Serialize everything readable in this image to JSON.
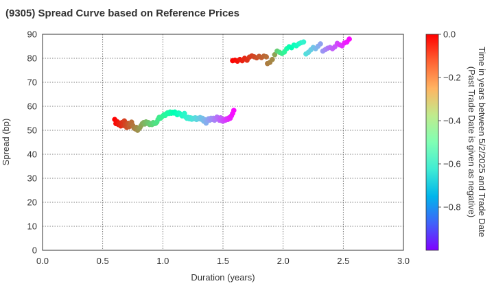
{
  "chart_data": {
    "type": "scatter",
    "title": "(9305)   Spread Curve based on Reference Prices",
    "xlabel": "Duration (years)",
    "ylabel": "Spread (bp)",
    "xlim": [
      0.0,
      3.0
    ],
    "ylim": [
      0,
      90
    ],
    "x_ticks": [
      "0.0",
      "0.5",
      "1.0",
      "1.5",
      "2.0",
      "2.5",
      "3.0"
    ],
    "y_ticks": [
      "0",
      "10",
      "20",
      "30",
      "40",
      "50",
      "60",
      "70",
      "80",
      "90"
    ],
    "grid": true,
    "colorbar": {
      "label_line1": "Time in years between 5/2/2025 and Trade Date",
      "label_line2": "(Past Trade Date is given as negative)",
      "range": [
        -1.0,
        0.0
      ],
      "ticks": [
        "0.0",
        "−0.2",
        "−0.4",
        "−0.6",
        "−0.8"
      ],
      "colormap": "rainbow"
    },
    "series": [
      {
        "points": [
          [
            0.6,
            54.5,
            0.0
          ],
          [
            0.61,
            52.8,
            -0.01
          ],
          [
            0.62,
            53.6,
            -0.02
          ],
          [
            0.63,
            52.4,
            -0.03
          ],
          [
            0.64,
            53.0,
            -0.04
          ],
          [
            0.65,
            51.8,
            -0.05
          ],
          [
            0.66,
            53.2,
            -0.06
          ],
          [
            0.67,
            52.0,
            -0.07
          ],
          [
            0.68,
            53.9,
            -0.08
          ],
          [
            0.69,
            52.2,
            -0.09
          ],
          [
            0.7,
            51.2,
            -0.1
          ],
          [
            0.71,
            52.9,
            -0.11
          ],
          [
            0.72,
            51.5,
            -0.12
          ],
          [
            0.73,
            52.6,
            -0.13
          ],
          [
            0.74,
            53.4,
            -0.14
          ],
          [
            0.75,
            52.0,
            -0.15
          ],
          [
            0.76,
            51.0,
            -0.16
          ],
          [
            0.77,
            50.6,
            -0.17
          ],
          [
            0.78,
            51.2,
            -0.18
          ],
          [
            0.79,
            50.0,
            -0.19
          ],
          [
            0.8,
            50.6,
            -0.2
          ],
          [
            0.81,
            51.2,
            -0.21
          ],
          [
            0.82,
            52.0,
            -0.22
          ],
          [
            0.83,
            52.8,
            -0.23
          ],
          [
            0.84,
            53.2,
            -0.24
          ],
          [
            0.85,
            52.6,
            -0.25
          ],
          [
            0.86,
            53.5,
            -0.26
          ],
          [
            0.87,
            52.9,
            -0.27
          ],
          [
            0.88,
            53.2,
            -0.28
          ],
          [
            0.89,
            52.4,
            -0.29
          ],
          [
            0.9,
            52.8,
            -0.3
          ],
          [
            0.91,
            52.4,
            -0.31
          ],
          [
            0.92,
            53.2,
            -0.32
          ],
          [
            0.93,
            52.8,
            -0.33
          ],
          [
            0.94,
            52.9,
            -0.34
          ],
          [
            0.95,
            53.4,
            -0.35
          ],
          [
            0.96,
            54.5,
            -0.36
          ],
          [
            0.97,
            55.4,
            -0.37
          ],
          [
            0.98,
            55.0,
            -0.38
          ],
          [
            0.99,
            55.5,
            -0.39
          ],
          [
            1.0,
            56.0,
            -0.4
          ],
          [
            1.01,
            56.5,
            -0.41
          ],
          [
            1.02,
            56.2,
            -0.42
          ],
          [
            1.03,
            56.9,
            -0.43
          ],
          [
            1.04,
            57.3,
            -0.44
          ],
          [
            1.05,
            57.0,
            -0.45
          ],
          [
            1.06,
            57.6,
            -0.46
          ],
          [
            1.07,
            57.1,
            -0.47
          ],
          [
            1.08,
            57.5,
            -0.48
          ],
          [
            1.09,
            57.2,
            -0.49
          ],
          [
            1.1,
            57.6,
            -0.5
          ],
          [
            1.11,
            57.0,
            -0.51
          ],
          [
            1.12,
            56.5,
            -0.52
          ],
          [
            1.13,
            57.2,
            -0.53
          ],
          [
            1.14,
            57.0,
            -0.54
          ],
          [
            1.15,
            56.6,
            -0.55
          ],
          [
            1.16,
            56.0,
            -0.56
          ],
          [
            1.17,
            56.4,
            -0.57
          ],
          [
            1.18,
            57.0,
            -0.58
          ],
          [
            1.19,
            55.5,
            -0.59
          ],
          [
            1.2,
            55.0,
            -0.6
          ],
          [
            1.21,
            55.4,
            -0.61
          ],
          [
            1.22,
            54.8,
            -0.62
          ],
          [
            1.23,
            55.2,
            -0.63
          ],
          [
            1.24,
            54.6,
            -0.64
          ],
          [
            1.25,
            55.0,
            -0.65
          ],
          [
            1.26,
            54.8,
            -0.66
          ],
          [
            1.27,
            55.2,
            -0.67
          ],
          [
            1.28,
            54.5,
            -0.68
          ],
          [
            1.29,
            55.0,
            -0.69
          ],
          [
            1.3,
            54.8,
            -0.7
          ],
          [
            1.31,
            55.3,
            -0.71
          ],
          [
            1.32,
            54.6,
            -0.72
          ],
          [
            1.33,
            55.0,
            -0.73
          ],
          [
            1.34,
            53.8,
            -0.74
          ],
          [
            1.35,
            54.4,
            -0.75
          ],
          [
            1.36,
            53.0,
            -0.76
          ],
          [
            1.37,
            54.0,
            -0.77
          ],
          [
            1.38,
            54.8,
            -0.78
          ],
          [
            1.39,
            54.2,
            -0.79
          ],
          [
            1.4,
            55.0,
            -0.8
          ],
          [
            1.41,
            54.5,
            -0.81
          ],
          [
            1.42,
            55.0,
            -0.82
          ],
          [
            1.43,
            54.2,
            -0.83
          ],
          [
            1.44,
            55.0,
            -0.84
          ],
          [
            1.45,
            55.5,
            -0.85
          ],
          [
            1.46,
            55.0,
            -0.86
          ],
          [
            1.47,
            54.2,
            -0.87
          ],
          [
            1.48,
            55.2,
            -0.88
          ],
          [
            1.49,
            54.0,
            -0.89
          ],
          [
            1.5,
            53.8,
            -0.9
          ],
          [
            1.51,
            54.5,
            -0.91
          ],
          [
            1.52,
            54.2,
            -0.92
          ],
          [
            1.53,
            54.8,
            -0.93
          ],
          [
            1.54,
            54.5,
            -0.94
          ],
          [
            1.55,
            55.2,
            -0.95
          ],
          [
            1.56,
            55.0,
            -0.96
          ],
          [
            1.57,
            56.0,
            -0.97
          ],
          [
            1.58,
            57.0,
            -0.98
          ],
          [
            1.59,
            58.3,
            -0.99
          ]
        ]
      },
      {
        "points": [
          [
            1.58,
            79.0,
            0.0
          ],
          [
            1.6,
            79.2,
            -0.01
          ],
          [
            1.62,
            78.8,
            -0.02
          ],
          [
            1.64,
            79.5,
            -0.03
          ],
          [
            1.66,
            79.0,
            -0.04
          ],
          [
            1.68,
            80.0,
            -0.05
          ],
          [
            1.7,
            79.2,
            -0.06
          ],
          [
            1.72,
            80.5,
            -0.07
          ],
          [
            1.74,
            81.0,
            -0.08
          ],
          [
            1.76,
            80.6,
            -0.09
          ],
          [
            1.78,
            80.2,
            -0.1
          ],
          [
            1.8,
            80.8,
            -0.11
          ],
          [
            1.82,
            80.3,
            -0.12
          ],
          [
            1.84,
            80.9,
            -0.13
          ],
          [
            1.86,
            80.6,
            -0.14
          ],
          [
            1.87,
            77.8,
            -0.16
          ],
          [
            1.89,
            78.3,
            -0.17
          ],
          [
            1.91,
            79.5,
            -0.18
          ],
          [
            1.93,
            81.5,
            -0.22
          ],
          [
            1.95,
            83.0,
            -0.3
          ],
          [
            1.97,
            82.5,
            -0.34
          ],
          [
            1.99,
            82.0,
            -0.38
          ],
          [
            2.01,
            82.6,
            -0.41
          ],
          [
            2.03,
            84.0,
            -0.45
          ],
          [
            2.05,
            84.8,
            -0.48
          ],
          [
            2.07,
            84.4,
            -0.5
          ],
          [
            2.09,
            85.5,
            -0.52
          ],
          [
            2.11,
            85.2,
            -0.54
          ],
          [
            2.13,
            86.0,
            -0.56
          ],
          [
            2.15,
            86.5,
            -0.58
          ],
          [
            2.17,
            86.8,
            -0.6
          ],
          [
            2.19,
            81.8,
            -0.66
          ],
          [
            2.21,
            82.5,
            -0.68
          ],
          [
            2.23,
            83.5,
            -0.7
          ],
          [
            2.25,
            84.5,
            -0.72
          ],
          [
            2.27,
            84.0,
            -0.74
          ],
          [
            2.29,
            85.0,
            -0.76
          ],
          [
            2.31,
            86.0,
            -0.78
          ],
          [
            2.33,
            83.0,
            -0.8
          ],
          [
            2.35,
            83.6,
            -0.82
          ],
          [
            2.37,
            84.2,
            -0.84
          ],
          [
            2.39,
            84.5,
            -0.86
          ],
          [
            2.41,
            84.0,
            -0.88
          ],
          [
            2.43,
            84.8,
            -0.89
          ],
          [
            2.45,
            86.2,
            -0.91
          ],
          [
            2.47,
            85.6,
            -0.93
          ],
          [
            2.49,
            85.2,
            -0.94
          ],
          [
            2.51,
            86.4,
            -0.96
          ],
          [
            2.53,
            86.8,
            -0.97
          ],
          [
            2.55,
            88.0,
            -0.99
          ]
        ]
      }
    ]
  }
}
